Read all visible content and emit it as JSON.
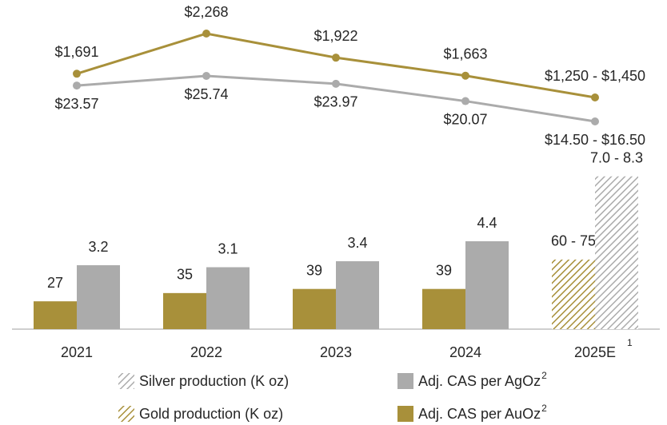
{
  "chart_data": {
    "type": "combo",
    "categories": [
      "2021",
      "2022",
      "2023",
      "2024",
      "2025E"
    ],
    "category_footnotes": [
      null,
      null,
      null,
      null,
      "1"
    ],
    "hatched": [
      false,
      false,
      false,
      false,
      true
    ],
    "series": [
      {
        "name": "Adj. CAS per AuOz",
        "footnote": "2",
        "type": "line",
        "color": "#a8903a",
        "values": [
          1691,
          2268,
          1922,
          1663,
          1350
        ],
        "value_labels": [
          "$1,691",
          "$2,268",
          "$1,922",
          "$1,663",
          "$1,250 - $1,450"
        ]
      },
      {
        "name": "Adj. CAS per AgOz",
        "footnote": "2",
        "type": "line",
        "color": "#ababab",
        "values": [
          23.57,
          25.74,
          23.97,
          20.07,
          15.5
        ],
        "value_labels": [
          "$23.57",
          "$25.74",
          "$23.97",
          "$20.07",
          "$14.50 - $16.50"
        ]
      },
      {
        "name": "Gold production (K oz)",
        "type": "bar",
        "color": "#a8903a",
        "values": [
          27,
          35,
          39,
          39,
          67.5
        ],
        "value_labels": [
          "27",
          "35",
          "39",
          "39",
          "60 - 75"
        ]
      },
      {
        "name": "Silver production (K oz)",
        "type": "bar",
        "color": "#ababab",
        "values": [
          3.2,
          3.1,
          3.4,
          4.4,
          7.65
        ],
        "value_labels": [
          "3.2",
          "3.1",
          "3.4",
          "4.4",
          "7.0 - 8.3"
        ]
      }
    ]
  }
}
